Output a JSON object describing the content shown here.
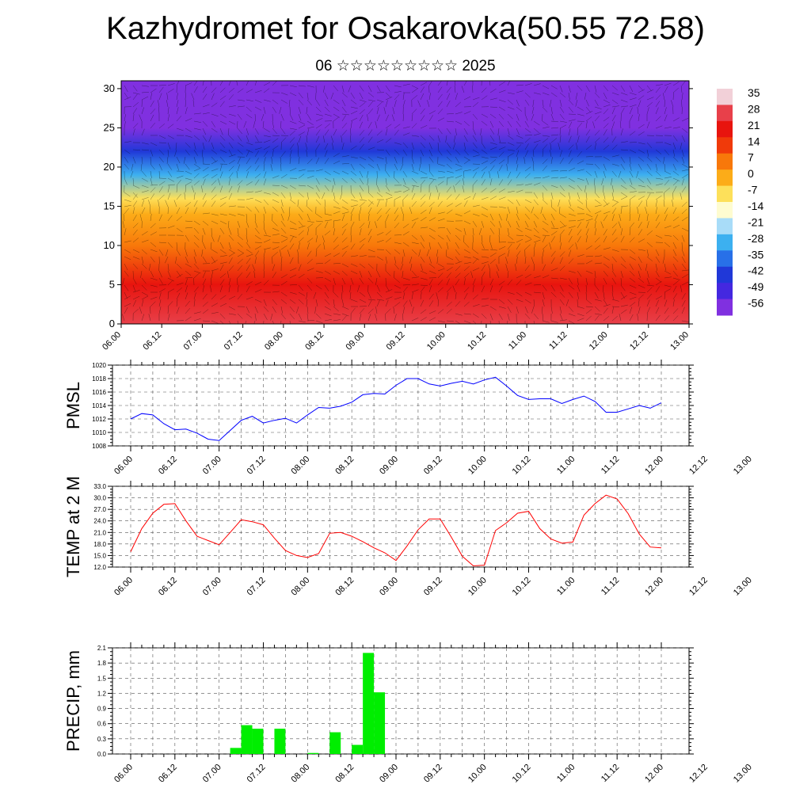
{
  "title": "Kazhydromet for Osakarovka(50.55 72.58)",
  "subtitle": "06 ☆☆☆☆☆☆☆☆☆ 2025",
  "x_ticks": [
    "06.00",
    "06.12",
    "07.00",
    "07.12",
    "08.00",
    "08.12",
    "09.00",
    "09.12",
    "10.00",
    "10.12",
    "11.00",
    "11.12",
    "12.00",
    "12.12",
    "13.00"
  ],
  "chart_data": [
    {
      "type": "heatmap",
      "subtype": "vertical cross-section with wind vectors",
      "ylim": [
        0,
        31
      ],
      "yticks": [
        0,
        5,
        10,
        15,
        20,
        25,
        30
      ],
      "colorbar": {
        "labels": [
          "35",
          "28",
          "21",
          "14",
          "7",
          "0",
          "-7",
          "-14",
          "-21",
          "-28",
          "-35",
          "-42",
          "-49",
          "-56"
        ],
        "colors": [
          "#f2d0d8",
          "#e8404a",
          "#e8140e",
          "#f03a0a",
          "#f8780a",
          "#fcac18",
          "#fde05a",
          "#fefcd0",
          "#a8dcf8",
          "#3cb0f0",
          "#2870e8",
          "#2038d8",
          "#4428e0",
          "#8030e0"
        ]
      },
      "temperature_profile": [
        {
          "height": 0,
          "value": 30
        },
        {
          "height": 5,
          "value": 21
        },
        {
          "height": 10,
          "value": 7
        },
        {
          "height": 14,
          "value": 0
        },
        {
          "height": 16,
          "value": -10
        },
        {
          "height": 19,
          "value": -28
        },
        {
          "height": 22,
          "value": -45
        },
        {
          "height": 25,
          "value": -56
        },
        {
          "height": 28,
          "value": -56
        },
        {
          "height": 31,
          "value": -58
        }
      ]
    },
    {
      "type": "line",
      "ylabel": "PMSL",
      "ylim": [
        1008,
        1020
      ],
      "yticks": [
        "1008",
        "1010",
        "1012",
        "1014",
        "1016",
        "1018",
        "1020"
      ],
      "color": "#0000ff",
      "x_hours": [
        0,
        3,
        6,
        9,
        12,
        15,
        18,
        21,
        24,
        27,
        30,
        33,
        36,
        39,
        42,
        45,
        48,
        51,
        54,
        57,
        60,
        63,
        66,
        69,
        72,
        75,
        78,
        81,
        84,
        87,
        90,
        93,
        96,
        99,
        102,
        105,
        108,
        111,
        114,
        117,
        120,
        123,
        126,
        129,
        132,
        135,
        138,
        141,
        144
      ],
      "values": [
        1012.0,
        1012.8,
        1012.6,
        1011.3,
        1010.4,
        1010.5,
        1009.9,
        1009.0,
        1008.8,
        1010.3,
        1011.8,
        1012.4,
        1011.4,
        1011.8,
        1012.1,
        1011.4,
        1012.6,
        1013.7,
        1013.6,
        1013.9,
        1014.5,
        1015.6,
        1015.8,
        1015.7,
        1017.0,
        1018.0,
        1018.0,
        1017.2,
        1016.9,
        1017.3,
        1017.6,
        1017.2,
        1017.8,
        1018.2,
        1016.9,
        1015.5,
        1014.9,
        1015.0,
        1015.0,
        1014.3,
        1014.9,
        1015.4,
        1014.6,
        1013.0,
        1013.0,
        1013.5,
        1014.0,
        1013.6,
        1014.4
      ]
    },
    {
      "type": "line",
      "ylabel": "TEMP at 2 M",
      "ylim": [
        12,
        33
      ],
      "yticks": [
        "12.0",
        "15.0",
        "18.0",
        "21.0",
        "24.0",
        "27.0",
        "30.0",
        "33.0"
      ],
      "color": "#ff0000",
      "x_hours": [
        0,
        3,
        6,
        9,
        12,
        15,
        18,
        21,
        24,
        27,
        30,
        33,
        36,
        39,
        42,
        45,
        48,
        51,
        54,
        57,
        60,
        63,
        66,
        69,
        72,
        75,
        78,
        81,
        84,
        87,
        90,
        93,
        96,
        99,
        102,
        105,
        108,
        111,
        114,
        117,
        120,
        123,
        126,
        129,
        132,
        135,
        138,
        141,
        144
      ],
      "values": [
        16.0,
        22.0,
        26.0,
        28.3,
        28.5,
        24.0,
        20.0,
        18.9,
        17.8,
        21.0,
        24.3,
        23.8,
        23.0,
        19.5,
        16.3,
        15.0,
        14.5,
        15.5,
        20.8,
        21.0,
        20.0,
        18.6,
        17.0,
        15.7,
        13.7,
        17.5,
        21.7,
        24.5,
        24.5,
        19.8,
        14.8,
        12.3,
        12.5,
        21.5,
        23.5,
        26.0,
        26.5,
        22.0,
        19.3,
        18.2,
        18.5,
        25.5,
        28.5,
        30.7,
        29.7,
        25.9,
        20.6,
        17.2,
        17.0
      ]
    },
    {
      "type": "bar",
      "ylabel": "PRECIP, mm",
      "ylim": [
        0,
        2.1
      ],
      "yticks": [
        "0.0",
        "0.3",
        "0.6",
        "0.9",
        "1.2",
        "1.5",
        "1.8",
        "2.1"
      ],
      "color": "#00ee00",
      "x_hours": [
        27,
        30,
        33,
        39,
        48,
        54,
        60,
        63,
        66
      ],
      "values": [
        0.12,
        0.57,
        0.5,
        0.5,
        0.02,
        0.43,
        0.18,
        2.0,
        1.22
      ]
    }
  ]
}
